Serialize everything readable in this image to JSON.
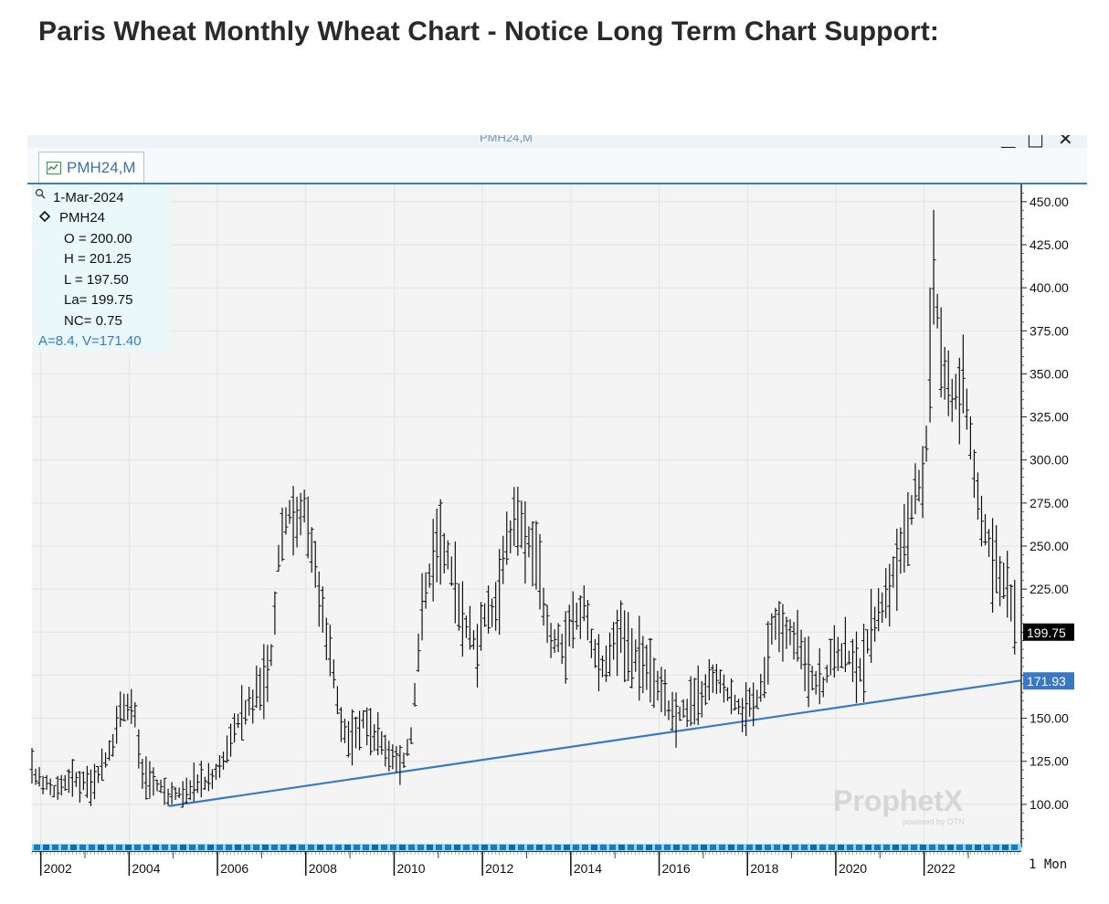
{
  "page_title": "Paris Wheat Monthly Wheat Chart - Notice Long Term Chart Support:",
  "window": {
    "title": "PMH24,M",
    "controls": {
      "minimize": "▁",
      "maximize": "□",
      "close": "✕"
    },
    "tab_label": "PMH24,M"
  },
  "info_box": {
    "date": "1-Mar-2024",
    "symbol": "PMH24",
    "open": "O = 200.00",
    "high": "H = 201.25",
    "low": "L = 197.50",
    "last": "La= 199.75",
    "net_change": "NC= 0.75",
    "trendline_info": "A=8.4, V=171.40"
  },
  "price_tags": {
    "last": "199.75",
    "trendline": "171.93"
  },
  "timeframe_label": "1 Mon",
  "watermark": {
    "brand": "ProphetX",
    "sub": "powered by DTN"
  },
  "colors": {
    "bars": "#111111",
    "trendline": "#3b78c4",
    "last_tag_bg": "#000000",
    "trend_tag_bg": "#3b78c4"
  },
  "chart_data": {
    "type": "ohlc",
    "symbol": "PMH24",
    "timeframe": "monthly",
    "y_ticks": [
      100,
      125,
      150,
      175,
      200,
      225,
      250,
      275,
      300,
      325,
      350,
      375,
      400,
      425,
      450
    ],
    "y_tick_labels": [
      "100.00",
      "125.00",
      "150.00",
      "",
      "",
      "225.00",
      "250.00",
      "275.00",
      "300.00",
      "325.00",
      "350.00",
      "375.00",
      "400.00",
      "425.00",
      "450.00"
    ],
    "ylim": [
      75,
      460
    ],
    "x_tick_labels": [
      "2002",
      "2004",
      "2006",
      "2008",
      "2010",
      "2012",
      "2014",
      "2016",
      "2018",
      "2020",
      "2022"
    ],
    "xlim": [
      2001.8,
      2024.2
    ],
    "grid": true,
    "trendline": {
      "x": [
        2004.9,
        2024.2
      ],
      "y": [
        99,
        171.93
      ]
    },
    "price_path": [
      [
        2001.8,
        118
      ],
      [
        2002.3,
        108
      ],
      [
        2002.7,
        115
      ],
      [
        2003.0,
        112
      ],
      [
        2003.3,
        115
      ],
      [
        2003.6,
        132
      ],
      [
        2003.85,
        160
      ],
      [
        2004.1,
        158
      ],
      [
        2004.3,
        118
      ],
      [
        2004.6,
        112
      ],
      [
        2004.9,
        105
      ],
      [
        2005.2,
        108
      ],
      [
        2005.5,
        111
      ],
      [
        2005.9,
        114
      ],
      [
        2006.2,
        130
      ],
      [
        2006.5,
        150
      ],
      [
        2006.9,
        165
      ],
      [
        2007.2,
        180
      ],
      [
        2007.4,
        250
      ],
      [
        2007.6,
        270
      ],
      [
        2007.8,
        262
      ],
      [
        2008.0,
        275
      ],
      [
        2008.15,
        248
      ],
      [
        2008.4,
        205
      ],
      [
        2008.6,
        180
      ],
      [
        2008.8,
        150
      ],
      [
        2009.0,
        138
      ],
      [
        2009.3,
        148
      ],
      [
        2009.6,
        138
      ],
      [
        2009.9,
        128
      ],
      [
        2010.2,
        124
      ],
      [
        2010.4,
        142
      ],
      [
        2010.6,
        205
      ],
      [
        2010.8,
        235
      ],
      [
        2011.0,
        255
      ],
      [
        2011.3,
        238
      ],
      [
        2011.6,
        205
      ],
      [
        2011.9,
        192
      ],
      [
        2012.1,
        212
      ],
      [
        2012.3,
        210
      ],
      [
        2012.5,
        250
      ],
      [
        2012.8,
        266
      ],
      [
        2013.0,
        255
      ],
      [
        2013.3,
        230
      ],
      [
        2013.5,
        198
      ],
      [
        2013.8,
        192
      ],
      [
        2014.1,
        205
      ],
      [
        2014.3,
        215
      ],
      [
        2014.5,
        190
      ],
      [
        2014.8,
        180
      ],
      [
        2015.1,
        200
      ],
      [
        2015.4,
        190
      ],
      [
        2015.8,
        180
      ],
      [
        2016.1,
        160
      ],
      [
        2016.4,
        150
      ],
      [
        2016.7,
        158
      ],
      [
        2017.0,
        165
      ],
      [
        2017.3,
        172
      ],
      [
        2017.6,
        162
      ],
      [
        2017.9,
        155
      ],
      [
        2018.2,
        160
      ],
      [
        2018.4,
        175
      ],
      [
        2018.6,
        208
      ],
      [
        2018.9,
        200
      ],
      [
        2019.1,
        195
      ],
      [
        2019.4,
        178
      ],
      [
        2019.7,
        168
      ],
      [
        2020.0,
        190
      ],
      [
        2020.3,
        185
      ],
      [
        2020.6,
        180
      ],
      [
        2020.9,
        210
      ],
      [
        2021.2,
        225
      ],
      [
        2021.5,
        250
      ],
      [
        2021.8,
        280
      ],
      [
        2022.0,
        290
      ],
      [
        2022.1,
        330
      ],
      [
        2022.2,
        415
      ],
      [
        2022.35,
        370
      ],
      [
        2022.6,
        335
      ],
      [
        2022.9,
        345
      ],
      [
        2023.1,
        300
      ],
      [
        2023.3,
        265
      ],
      [
        2023.6,
        240
      ],
      [
        2023.9,
        225
      ],
      [
        2024.1,
        199.75
      ]
    ]
  }
}
